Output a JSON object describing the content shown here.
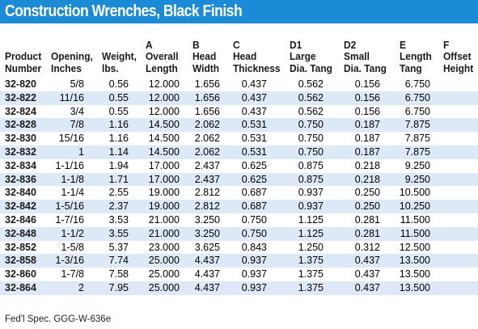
{
  "title": "Construction Wrenches, Black Finish",
  "headers": [
    [
      "",
      "Product",
      "Number"
    ],
    [
      "",
      "Opening,",
      "Inches"
    ],
    [
      "",
      "Weight,",
      "lbs."
    ],
    [
      "A",
      "Overall",
      "Length"
    ],
    [
      "B",
      "Head",
      "Width"
    ],
    [
      "C",
      "Head",
      "Thickness"
    ],
    [
      "D1",
      "Large",
      "Dia. Tang"
    ],
    [
      "D2",
      "Small",
      "Dia. Tang"
    ],
    [
      "E",
      "Length",
      "Tang"
    ],
    [
      "F",
      "Offset",
      "Height"
    ]
  ],
  "rows": [
    [
      "32-820",
      "5/8",
      "0.56",
      "12.000",
      "1.656",
      "0.437",
      "0.562",
      "0.156",
      "6.750",
      ""
    ],
    [
      "32-822",
      "11/16",
      "0.55",
      "12.000",
      "1.656",
      "0.437",
      "0.562",
      "0.156",
      "6.750",
      ""
    ],
    [
      "32-824",
      "3/4",
      "0.55",
      "12.000",
      "1.656",
      "0.437",
      "0.562",
      "0.156",
      "6.750",
      ""
    ],
    [
      "32-828",
      "7/8",
      "1.16",
      "14.500",
      "2.062",
      "0.531",
      "0.750",
      "0.187",
      "7.875",
      ""
    ],
    [
      "32-830",
      "15/16",
      "1.16",
      "14.500",
      "2.062",
      "0.531",
      "0.750",
      "0.187",
      "7.875",
      ""
    ],
    [
      "32-832",
      "1",
      "1.14",
      "14.500",
      "2.062",
      "0.531",
      "0.750",
      "0.187",
      "7.875",
      ""
    ],
    [
      "32-834",
      "1-1/16",
      "1.94",
      "17.000",
      "2.437",
      "0.625",
      "0.875",
      "0.218",
      "9.250",
      ""
    ],
    [
      "32-836",
      "1-1/8",
      "1.71",
      "17.000",
      "2.437",
      "0.625",
      "0.875",
      "0.218",
      "9.250",
      ""
    ],
    [
      "32-840",
      "1-1/4",
      "2.55",
      "19.000",
      "2.812",
      "0.687",
      "0.937",
      "0.250",
      "10.500",
      ""
    ],
    [
      "32-842",
      "1-5/16",
      "2.37",
      "19.000",
      "2.812",
      "0.687",
      "0.937",
      "0.250",
      "10.250",
      ""
    ],
    [
      "32-846",
      "1-7/16",
      "3.53",
      "21.000",
      "3.250",
      "0.750",
      "1.125",
      "0.281",
      "11.500",
      ""
    ],
    [
      "32-848",
      "1-1/2",
      "3.55",
      "21.000",
      "3.250",
      "0.750",
      "1.125",
      "0.281",
      "11.500",
      ""
    ],
    [
      "32-852",
      "1-5/8",
      "5.37",
      "23.000",
      "3.625",
      "0.843",
      "1.250",
      "0.312",
      "12.500",
      ""
    ],
    [
      "32-858",
      "1-3/16",
      "7.74",
      "25.000",
      "4.437",
      "0.937",
      "1.375",
      "0.437",
      "13.500",
      ""
    ],
    [
      "32-860",
      "1-7/8",
      "7.58",
      "25.000",
      "4.437",
      "0.937",
      "1.375",
      "0.437",
      "13.500",
      ""
    ],
    [
      "32-864",
      "2",
      "7.95",
      "25.000",
      "4.437",
      "0.937",
      "1.375",
      "0.437",
      "13.500",
      ""
    ]
  ],
  "footer": "Fed'l Spec. GGG-W-636e",
  "colors": {
    "title_background": "#1b8bd8",
    "title_text": "#ffffff",
    "shaded_row": "#dde9f7"
  }
}
